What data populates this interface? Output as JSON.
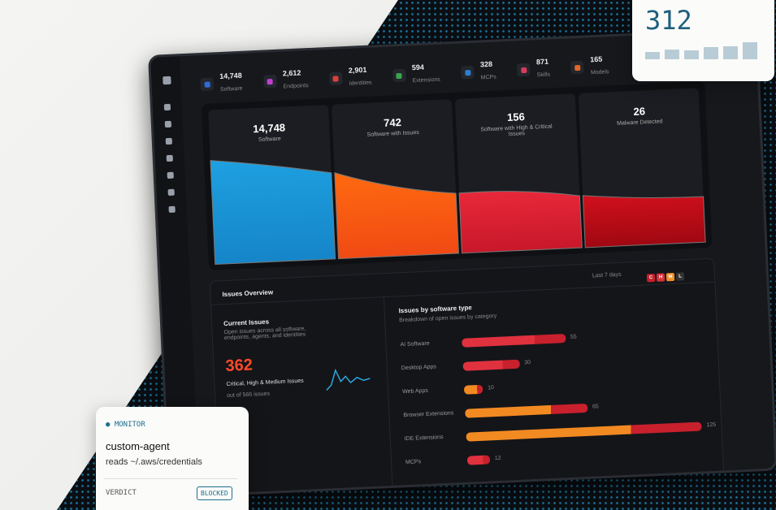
{
  "stats": [
    {
      "value": "14,748",
      "label": "Software",
      "color": "#2f6bd8"
    },
    {
      "value": "2,612",
      "label": "Endpoints",
      "color": "#c23fd0"
    },
    {
      "value": "2,901",
      "label": "Identities",
      "color": "#d8403a"
    },
    {
      "value": "594",
      "label": "Extensions",
      "color": "#3aa64a"
    },
    {
      "value": "328",
      "label": "MCPs",
      "color": "#2a7fd0"
    },
    {
      "value": "871",
      "label": "Skills",
      "color": "#d83a5a"
    },
    {
      "value": "165",
      "label": "Models",
      "color": "#e0662a"
    }
  ],
  "funnel": [
    {
      "value": "14,748",
      "label": "Software"
    },
    {
      "value": "742",
      "label": "Software with Issues"
    },
    {
      "value": "156",
      "label": "Software with High & Critical Issues"
    },
    {
      "value": "26",
      "label": "Malware Detected"
    }
  ],
  "issues_overview": {
    "title": "Issues Overview",
    "range": "Last 7 days",
    "severities": [
      "C",
      "H",
      "M",
      "L"
    ],
    "current": {
      "title": "Current Issues",
      "description": "Open issues across all software, endpoints, agents, and identities",
      "count": "362",
      "count_label": "Critical, High & Medium Issues",
      "total": "out of 566 issues"
    },
    "by_type": {
      "title": "Issues by software type",
      "subtitle": "Breakdown of open issues by category",
      "rows": [
        {
          "label": "AI Software",
          "value": 55,
          "color": "#e0313f"
        },
        {
          "label": "Desktop Apps",
          "value": 30,
          "color": "#e0313f"
        },
        {
          "label": "Web Apps",
          "value": 10,
          "color": "#f28a22"
        },
        {
          "label": "Browser Extensions",
          "value": 65,
          "color": "#f28a22"
        },
        {
          "label": "IDE Extensions",
          "value": 125,
          "color": "#f28a22"
        },
        {
          "label": "MCPs",
          "value": 12,
          "color": "#e0313f"
        }
      ]
    }
  },
  "top_card": {
    "value": "312"
  },
  "monitor_card": {
    "tag": "MONITOR",
    "agent": "custom-agent",
    "action": "reads ~/.aws/credentials",
    "verdict_label": "VERDICT",
    "verdict": "BLOCKED"
  }
}
